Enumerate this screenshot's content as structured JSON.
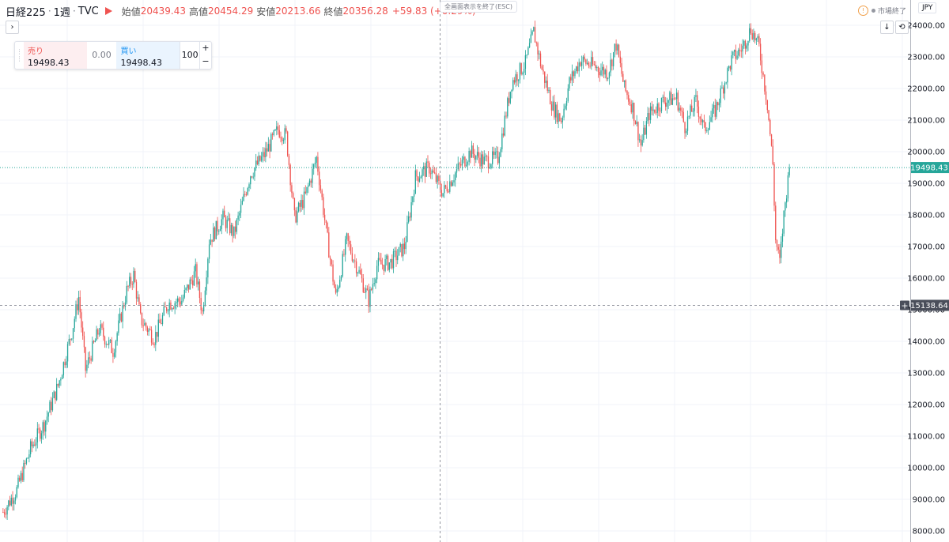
{
  "header": {
    "symbol": "日経225",
    "sep1": "·",
    "interval": "1週",
    "sep2": "·",
    "source": "TVC",
    "open_label": "始値",
    "open": "20439.43",
    "high_label": "高値",
    "high": "20454.29",
    "low_label": "安値",
    "low": "20213.66",
    "close_label": "終値",
    "close": "20356.28",
    "change": "+59.83 (+0.29%)"
  },
  "esc_hint": "全画面表示を終了(ESC)",
  "market_status": "市場終了",
  "currency": "JPY",
  "buttons": {
    "expand": "›",
    "download": "↓",
    "refresh": "⟲"
  },
  "trade_panel": {
    "sell_label": "売り",
    "sell_price": "19498.43",
    "spread": "0.00",
    "buy_label": "買い",
    "buy_price": "19498.43",
    "quantity": "100",
    "plus": "+",
    "minus": "−"
  },
  "colors": {
    "up": "#26a69a",
    "down": "#ef5350",
    "grid": "#f0f3fa",
    "price_line": "#26a69a",
    "crosshair": "#9598a1",
    "cross_label": "#4a4e5a"
  },
  "chart_data": {
    "type": "candlestick",
    "ylim": [
      7650,
      24800
    ],
    "yticks": [
      8000,
      9000,
      10000,
      11000,
      12000,
      13000,
      14000,
      15000,
      16000,
      17000,
      18000,
      19000,
      20000,
      21000,
      22000,
      23000,
      24000
    ],
    "ytick_labels": [
      "8000.00",
      "9000.00",
      "10000.00",
      "11000.00",
      "12000.00",
      "13000.00",
      "14000.00",
      "15000.00",
      "16000.00",
      "17000.00",
      "18000.00",
      "19000.00",
      "20000.00",
      "21000.00",
      "22000.00",
      "23000.00",
      "24000.00"
    ],
    "current_price": 19498.43,
    "current_price_label": "19498.43",
    "crosshair_price": 15138.64,
    "crosshair_label": "15138.64",
    "crosshair_bar": 0.555,
    "anchors": [
      [
        0,
        8600
      ],
      [
        10,
        9300
      ],
      [
        20,
        10600
      ],
      [
        30,
        11400
      ],
      [
        40,
        12600
      ],
      [
        50,
        14300
      ],
      [
        55,
        15400
      ],
      [
        60,
        13100
      ],
      [
        70,
        14400
      ],
      [
        80,
        13700
      ],
      [
        90,
        15600
      ],
      [
        95,
        16100
      ],
      [
        100,
        14700
      ],
      [
        110,
        14100
      ],
      [
        120,
        15200
      ],
      [
        130,
        15300
      ],
      [
        140,
        16200
      ],
      [
        145,
        14900
      ],
      [
        150,
        17200
      ],
      [
        160,
        17900
      ],
      [
        168,
        17400
      ],
      [
        180,
        19300
      ],
      [
        190,
        19900
      ],
      [
        200,
        20700
      ],
      [
        206,
        20500
      ],
      [
        212,
        17900
      ],
      [
        220,
        18600
      ],
      [
        228,
        19800
      ],
      [
        236,
        17200
      ],
      [
        242,
        15400
      ],
      [
        250,
        17200
      ],
      [
        258,
        16300
      ],
      [
        266,
        15300
      ],
      [
        272,
        16400
      ],
      [
        282,
        16500
      ],
      [
        292,
        17000
      ],
      [
        300,
        19200
      ],
      [
        310,
        19500
      ],
      [
        320,
        18700
      ],
      [
        330,
        19400
      ],
      [
        340,
        20000
      ],
      [
        350,
        19700
      ],
      [
        360,
        19800
      ],
      [
        370,
        22200
      ],
      [
        380,
        22800
      ],
      [
        386,
        23800
      ],
      [
        392,
        22600
      ],
      [
        400,
        21400
      ],
      [
        406,
        21000
      ],
      [
        412,
        22200
      ],
      [
        420,
        22900
      ],
      [
        430,
        22700
      ],
      [
        440,
        22500
      ],
      [
        446,
        23400
      ],
      [
        452,
        22000
      ],
      [
        458,
        21400
      ],
      [
        464,
        20200
      ],
      [
        470,
        21200
      ],
      [
        480,
        21600
      ],
      [
        490,
        21700
      ],
      [
        496,
        20800
      ],
      [
        504,
        21600
      ],
      [
        510,
        20700
      ],
      [
        518,
        21300
      ],
      [
        524,
        22100
      ],
      [
        530,
        22900
      ],
      [
        538,
        23300
      ],
      [
        544,
        23900
      ],
      [
        550,
        23300
      ],
      [
        556,
        21500
      ],
      [
        560,
        19600
      ],
      [
        562,
        17200
      ],
      [
        565,
        16500
      ],
      [
        568,
        18000
      ],
      [
        572,
        19500
      ]
    ]
  }
}
